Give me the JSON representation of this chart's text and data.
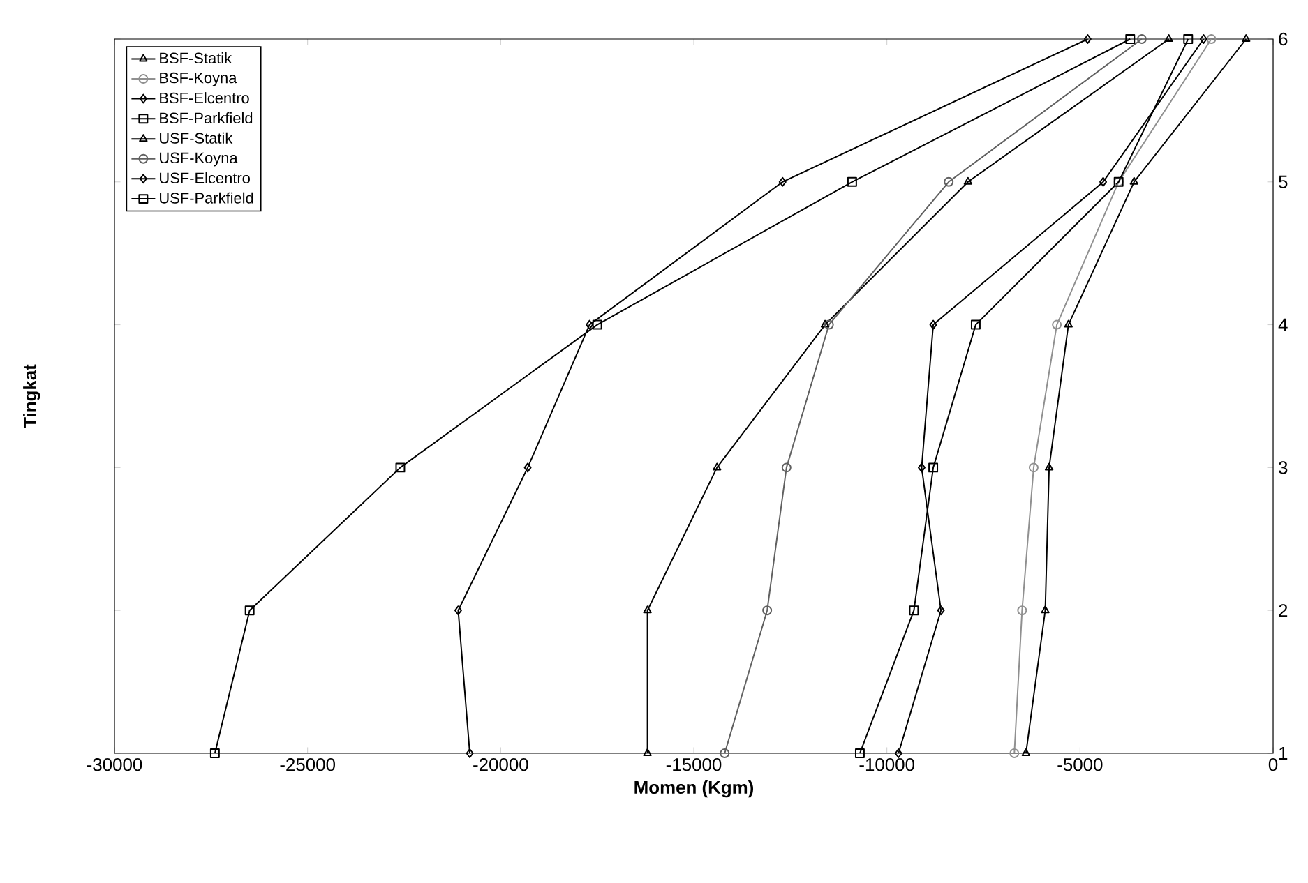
{
  "chart_data": {
    "type": "line",
    "xlabel": "Momen (Kgm)",
    "ylabel": "Tingkat",
    "x": [
      1,
      2,
      3,
      4,
      5,
      6
    ],
    "orientation": "horizontal",
    "xlim": [
      -30000,
      0
    ],
    "xticks": [
      -30000,
      -25000,
      -20000,
      -15000,
      -10000,
      -5000,
      0
    ],
    "ylim": [
      1,
      6
    ],
    "yticks": [
      1,
      2,
      3,
      4,
      5,
      6
    ],
    "grid": false,
    "legend": "top left",
    "series": [
      {
        "name": "BSF-Statik",
        "color": "#000000",
        "marker": "triangle",
        "values": [
          -6400,
          -5900,
          -5800,
          -5300,
          -3600,
          -700
        ]
      },
      {
        "name": "BSF-Koyna",
        "color": "#909090",
        "marker": "circle",
        "values": [
          -6700,
          -6500,
          -6200,
          -5600,
          -4000,
          -1600
        ]
      },
      {
        "name": "BSF-Elcentro",
        "color": "#000000",
        "marker": "diamond",
        "values": [
          -9700,
          -8600,
          -9100,
          -8800,
          -4400,
          -1800
        ]
      },
      {
        "name": "BSF-Parkfield",
        "color": "#000000",
        "marker": "square",
        "values": [
          -10700,
          -9300,
          -8800,
          -7700,
          -4000,
          -2200
        ]
      },
      {
        "name": "USF-Statik",
        "color": "#000000",
        "marker": "triangle",
        "values": [
          -16200,
          -16200,
          -14400,
          -11600,
          -7900,
          -2700
        ]
      },
      {
        "name": "USF-Koyna",
        "color": "#606060",
        "marker": "circle",
        "values": [
          -14200,
          -13100,
          -12600,
          -11500,
          -8400,
          -3400
        ]
      },
      {
        "name": "USF-Elcentro",
        "color": "#000000",
        "marker": "diamond",
        "values": [
          -20800,
          -21100,
          -19300,
          -17700,
          -12700,
          -4800
        ]
      },
      {
        "name": "USF-Parkfield",
        "color": "#000000",
        "marker": "square",
        "values": [
          -27400,
          -26500,
          -22600,
          -17500,
          -10900,
          -3700
        ]
      }
    ]
  }
}
